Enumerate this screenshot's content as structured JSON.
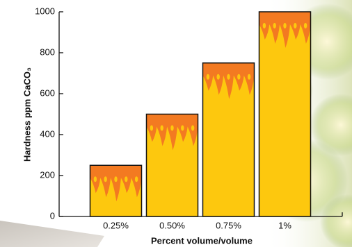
{
  "chart_data": {
    "type": "bar",
    "x_label": "Percent volume/volume",
    "y_label": "Hardness ppm CaCO₃",
    "categories": [
      "0.25%",
      "0.50%",
      "0.75%",
      "1%"
    ],
    "values": [
      250,
      500,
      750,
      1000
    ],
    "color": "#fdc80e",
    "top_color": "#f37a21",
    "ylim": [
      0,
      1000
    ],
    "yticks": [
      0,
      200,
      400,
      600,
      800,
      1000
    ]
  }
}
